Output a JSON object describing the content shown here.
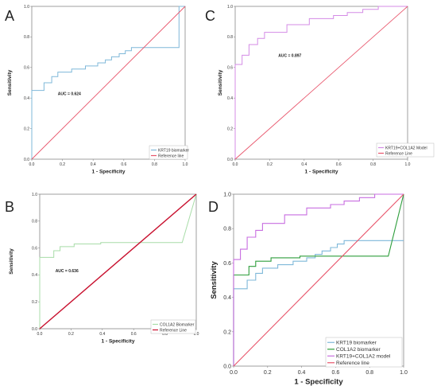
{
  "panels": [
    {
      "letter": "A",
      "xlabel": "1 - Specificity",
      "ylabel": "Sensitivity",
      "annotation": "AUC = 0.624",
      "legend": [
        "KRT19 biomarker",
        "Reference line"
      ],
      "xticks": [
        "0.0",
        "0.2",
        "0.4",
        "0.6",
        "0.8",
        "1.0"
      ],
      "yticks": [
        "0.0",
        "0.2",
        "0.4",
        "0.6",
        "0.8",
        "1.0"
      ]
    },
    {
      "letter": "C",
      "xlabel": "1 - Specificity",
      "ylabel": "Sensitivity",
      "annotation": "AUC = 0.897",
      "legend": [
        "KRT19+COL1A2 Model",
        "Reference Line"
      ],
      "xticks": [
        "0.0",
        "0.2",
        "0.4",
        "0.6",
        "0.8",
        "1.0"
      ],
      "yticks": [
        "0.0",
        "0.2",
        "0.4",
        "0.6",
        "0.8",
        "1.0"
      ]
    },
    {
      "letter": "B",
      "xlabel": "1 - Specificity",
      "ylabel": "Sensitivity",
      "annotation": "AUC = 0.636",
      "legend": [
        "COL1A2 Biomarker",
        "Reference Line"
      ],
      "xticks": [
        "0.0",
        "0.2",
        "0.4",
        "0.6",
        "0.8",
        "1.0"
      ],
      "yticks": [
        "0.0",
        "0.2",
        "0.4",
        "0.6",
        "0.8",
        "1.0"
      ]
    },
    {
      "letter": "D",
      "xlabel": "1 - Specificity",
      "ylabel": "Sensitivity",
      "annotation": "",
      "legend": [
        "KRT19 biomarker",
        "COL1A2 biomarker",
        "KRT19+COL1A2 model",
        "Reference line"
      ],
      "xticks": [
        "0.0",
        "0.2",
        "0.4",
        "0.6",
        "0.8",
        "1.0"
      ],
      "yticks": [
        "0.0",
        "0.2",
        "0.4",
        "0.6",
        "0.8",
        "1.0"
      ]
    }
  ],
  "colors": {
    "krt19": "#7fb8d9",
    "col1a2_b": "#a8dca8",
    "col1a2_d": "#2e9e3c",
    "model": "#d48be6",
    "model_d": "#c86ee0",
    "reference": "#e8556b",
    "reference_b": "#c8102e",
    "axis": "#888888"
  },
  "chart_data": [
    {
      "type": "line",
      "panel": "A",
      "xlim": [
        0,
        1
      ],
      "ylim": [
        0,
        1
      ],
      "series": [
        {
          "name": "KRT19 biomarker",
          "x": [
            0,
            0,
            0.04,
            0.04,
            0.08,
            0.08,
            0.13,
            0.13,
            0.17,
            0.17,
            0.26,
            0.26,
            0.35,
            0.35,
            0.43,
            0.43,
            0.48,
            0.48,
            0.52,
            0.52,
            0.57,
            0.57,
            0.61,
            0.61,
            0.65,
            0.65,
            0.74,
            0.74,
            0.96,
            0.96,
            1.0,
            1.0
          ],
          "y": [
            0,
            0.45,
            0.45,
            0.45,
            0.45,
            0.5,
            0.5,
            0.54,
            0.54,
            0.57,
            0.57,
            0.59,
            0.59,
            0.61,
            0.61,
            0.63,
            0.63,
            0.65,
            0.65,
            0.67,
            0.67,
            0.69,
            0.69,
            0.71,
            0.71,
            0.73,
            0.73,
            0.73,
            0.73,
            1.0,
            1.0,
            1.0
          ]
        },
        {
          "name": "Reference line",
          "x": [
            0,
            1
          ],
          "y": [
            0,
            1
          ]
        }
      ]
    },
    {
      "type": "line",
      "panel": "C",
      "xlim": [
        0,
        1
      ],
      "ylim": [
        0,
        1
      ],
      "series": [
        {
          "name": "KRT19+COL1A2 Model",
          "x": [
            0,
            0,
            0.04,
            0.04,
            0.08,
            0.08,
            0.13,
            0.13,
            0.17,
            0.17,
            0.3,
            0.3,
            0.43,
            0.43,
            0.57,
            0.57,
            0.65,
            0.65,
            0.74,
            0.74,
            0.83,
            0.83,
            1.0
          ],
          "y": [
            0,
            0.62,
            0.62,
            0.68,
            0.68,
            0.75,
            0.75,
            0.79,
            0.79,
            0.83,
            0.83,
            0.88,
            0.88,
            0.92,
            0.92,
            0.94,
            0.94,
            0.96,
            0.96,
            0.98,
            0.98,
            1.0,
            1.0
          ]
        },
        {
          "name": "Reference Line",
          "x": [
            0,
            1
          ],
          "y": [
            0,
            1
          ]
        }
      ]
    },
    {
      "type": "line",
      "panel": "B",
      "xlim": [
        0,
        1
      ],
      "ylim": [
        0,
        1
      ],
      "series": [
        {
          "name": "COL1A2 Biomarker",
          "x": [
            0,
            0,
            0.09,
            0.09,
            0.13,
            0.13,
            0.22,
            0.22,
            0.39,
            0.39,
            0.91,
            1.0
          ],
          "y": [
            0,
            0.53,
            0.53,
            0.58,
            0.58,
            0.61,
            0.61,
            0.63,
            0.63,
            0.64,
            0.64,
            1.0
          ]
        },
        {
          "name": "Reference Line",
          "x": [
            0,
            1
          ],
          "y": [
            0,
            1
          ]
        }
      ]
    },
    {
      "type": "line",
      "panel": "D",
      "xlim": [
        0,
        1
      ],
      "ylim": [
        0,
        1
      ],
      "series": [
        {
          "name": "KRT19 biomarker",
          "x": [
            0,
            0,
            0.04,
            0.04,
            0.08,
            0.08,
            0.13,
            0.13,
            0.17,
            0.17,
            0.26,
            0.26,
            0.35,
            0.35,
            0.43,
            0.43,
            0.48,
            0.48,
            0.52,
            0.52,
            0.57,
            0.57,
            0.61,
            0.61,
            0.65,
            0.65,
            0.74,
            0.74,
            1.0
          ],
          "y": [
            0,
            0.45,
            0.45,
            0.45,
            0.45,
            0.5,
            0.5,
            0.54,
            0.54,
            0.57,
            0.57,
            0.59,
            0.59,
            0.61,
            0.61,
            0.63,
            0.63,
            0.65,
            0.65,
            0.67,
            0.67,
            0.69,
            0.69,
            0.71,
            0.71,
            0.73,
            0.73,
            0.73,
            0.73
          ]
        },
        {
          "name": "COL1A2 biomarker",
          "x": [
            0,
            0,
            0.09,
            0.09,
            0.13,
            0.13,
            0.22,
            0.22,
            0.39,
            0.39,
            0.91,
            1.0
          ],
          "y": [
            0,
            0.53,
            0.53,
            0.58,
            0.58,
            0.61,
            0.61,
            0.63,
            0.63,
            0.64,
            0.64,
            1.0
          ]
        },
        {
          "name": "KRT19+COL1A2 model",
          "x": [
            0,
            0,
            0.04,
            0.04,
            0.08,
            0.08,
            0.13,
            0.13,
            0.17,
            0.17,
            0.3,
            0.3,
            0.43,
            0.43,
            0.57,
            0.57,
            0.65,
            0.65,
            0.74,
            0.74,
            0.83,
            0.83,
            1.0
          ],
          "y": [
            0,
            0.62,
            0.62,
            0.68,
            0.68,
            0.75,
            0.75,
            0.79,
            0.79,
            0.83,
            0.83,
            0.88,
            0.88,
            0.92,
            0.92,
            0.94,
            0.94,
            0.96,
            0.96,
            0.98,
            0.98,
            1.0,
            1.0
          ]
        },
        {
          "name": "Reference line",
          "x": [
            0,
            1
          ],
          "y": [
            0,
            1
          ]
        }
      ]
    }
  ]
}
